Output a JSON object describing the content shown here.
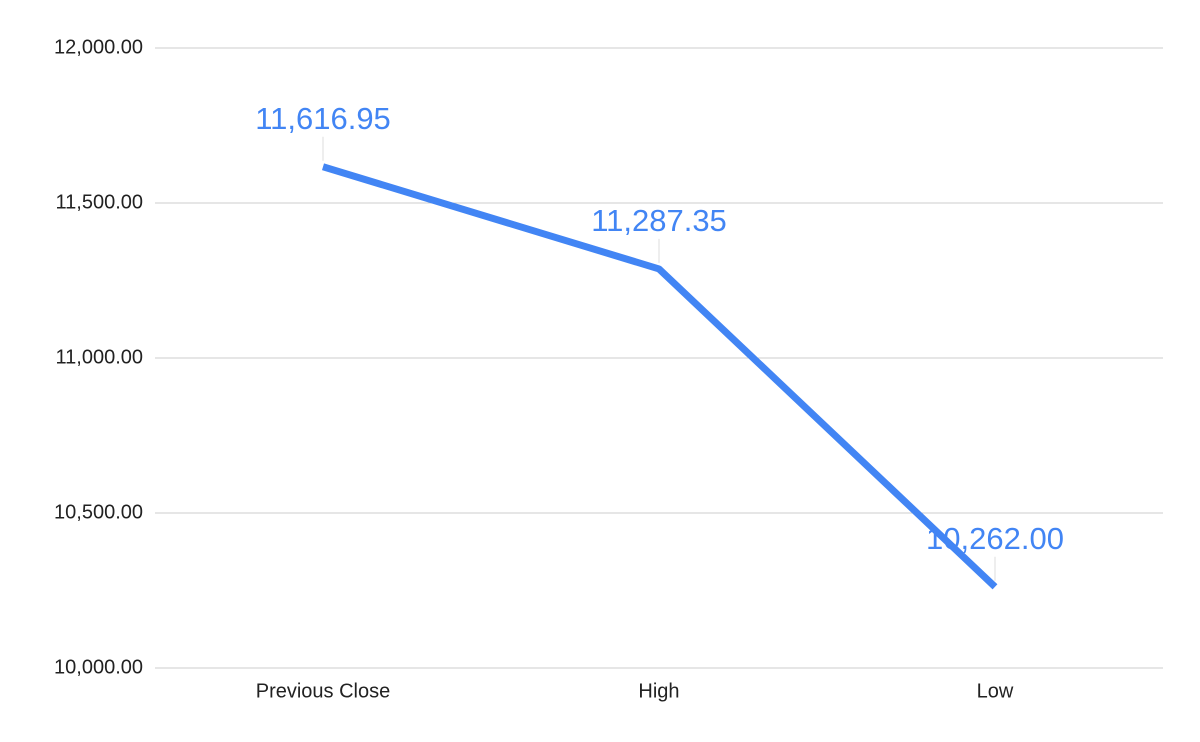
{
  "chart_data": {
    "type": "line",
    "categories": [
      "Previous Close",
      "High",
      "Low"
    ],
    "values": [
      11616.95,
      11287.35,
      10262
    ],
    "value_labels": [
      "11,616.95",
      "11,287.35",
      "10,262.00"
    ],
    "color": "#4285f4",
    "ylim": [
      10000,
      12000
    ],
    "yticks": [
      {
        "value": 10000,
        "label": "10,000.00"
      },
      {
        "value": 10500,
        "label": "10,500.00"
      },
      {
        "value": 11000,
        "label": "11,000.00"
      },
      {
        "value": 11500,
        "label": "11,500.00"
      },
      {
        "value": 12000,
        "label": "12,000.00"
      }
    ],
    "grid": true
  }
}
